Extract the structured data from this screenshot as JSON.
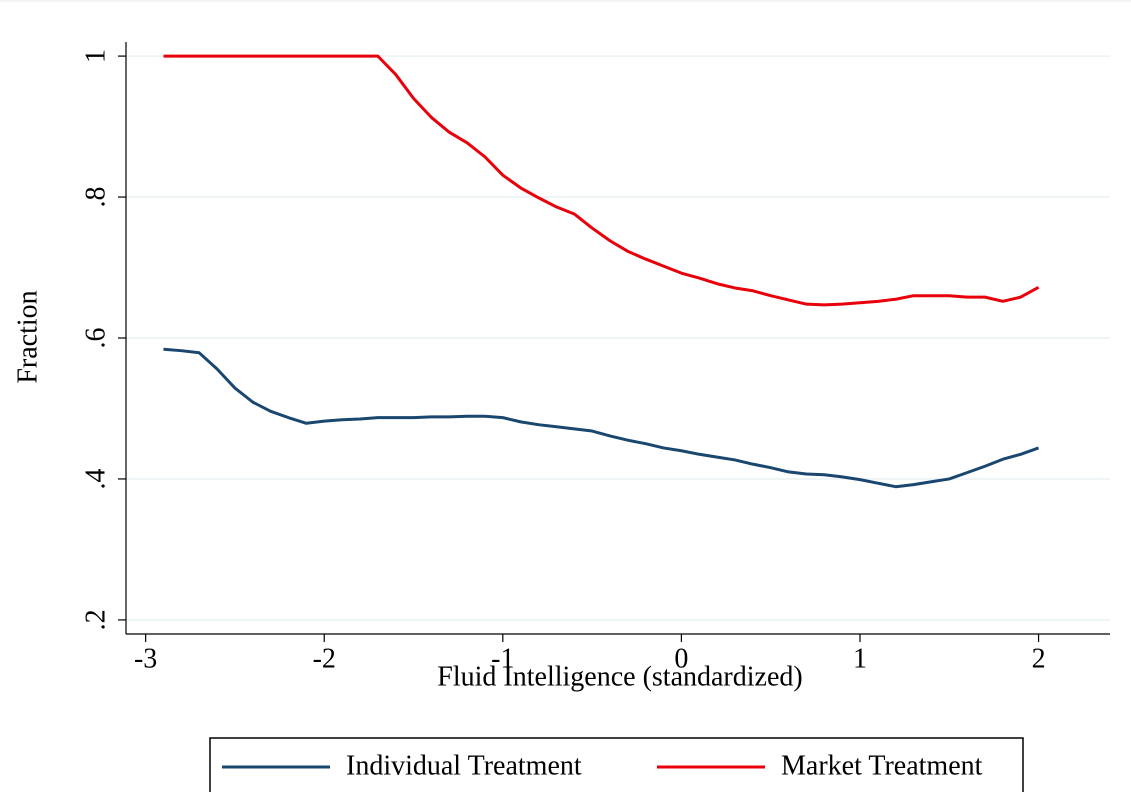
{
  "chart_data": {
    "type": "line",
    "x_label": "Fluid Intelligence (standardized)",
    "y_label": "Fraction",
    "x": [
      -2.9,
      -2.8,
      -2.7,
      -2.6,
      -2.5,
      -2.4,
      -2.3,
      -2.2,
      -2.1,
      -2.0,
      -1.9,
      -1.8,
      -1.7,
      -1.6,
      -1.5,
      -1.4,
      -1.3,
      -1.2,
      -1.1,
      -1.0,
      -0.9,
      -0.8,
      -0.7,
      -0.6,
      -0.5,
      -0.4,
      -0.3,
      -0.2,
      -0.1,
      0,
      0.1,
      0.2,
      0.3,
      0.4,
      0.5,
      0.6,
      0.7,
      0.8,
      0.9,
      1.0,
      1.1,
      1.2,
      1.3,
      1.4,
      1.5,
      1.6,
      1.7,
      1.8,
      1.9,
      2.0
    ],
    "series": [
      {
        "name": "Individual Treatment",
        "color": "#1a476f",
        "values": [
          0.584,
          0.582,
          0.579,
          0.556,
          0.529,
          0.509,
          0.496,
          0.487,
          0.479,
          0.482,
          0.484,
          0.485,
          0.487,
          0.487,
          0.487,
          0.488,
          0.488,
          0.489,
          0.489,
          0.487,
          0.481,
          0.477,
          0.474,
          0.471,
          0.468,
          0.461,
          0.455,
          0.45,
          0.444,
          0.44,
          0.435,
          0.431,
          0.427,
          0.421,
          0.416,
          0.41,
          0.407,
          0.406,
          0.403,
          0.399,
          0.394,
          0.389,
          0.392,
          0.396,
          0.4,
          0.409,
          0.418,
          0.428,
          0.435,
          0.444
        ]
      },
      {
        "name": "Market Treatment",
        "color": "#e8000b",
        "values": [
          1,
          1,
          1,
          1,
          1,
          1,
          1,
          1,
          1,
          1,
          1,
          1,
          1,
          0.974,
          0.94,
          0.913,
          0.892,
          0.877,
          0.857,
          0.831,
          0.813,
          0.799,
          0.786,
          0.776,
          0.756,
          0.738,
          0.723,
          0.712,
          0.702,
          0.692,
          0.685,
          0.677,
          0.671,
          0.667,
          0.66,
          0.654,
          0.648,
          0.647,
          0.648,
          0.65,
          0.652,
          0.655,
          0.66,
          0.66,
          0.66,
          0.658,
          0.658,
          0.652,
          0.658,
          0.672
        ]
      }
    ],
    "xlim": [
      -3.11,
      2.4
    ],
    "xticks": [
      -3,
      -2,
      -1,
      0,
      1,
      2
    ],
    "ylim": [
      0.18,
      1.02
    ],
    "yticks": [
      {
        "value": 0.2,
        "label": ".2"
      },
      {
        "value": 0.4,
        "label": ".4"
      },
      {
        "value": 0.6,
        "label": ".6"
      },
      {
        "value": 0.8,
        "label": ".8"
      },
      1
    ],
    "grid": true,
    "legend": "bottom"
  }
}
